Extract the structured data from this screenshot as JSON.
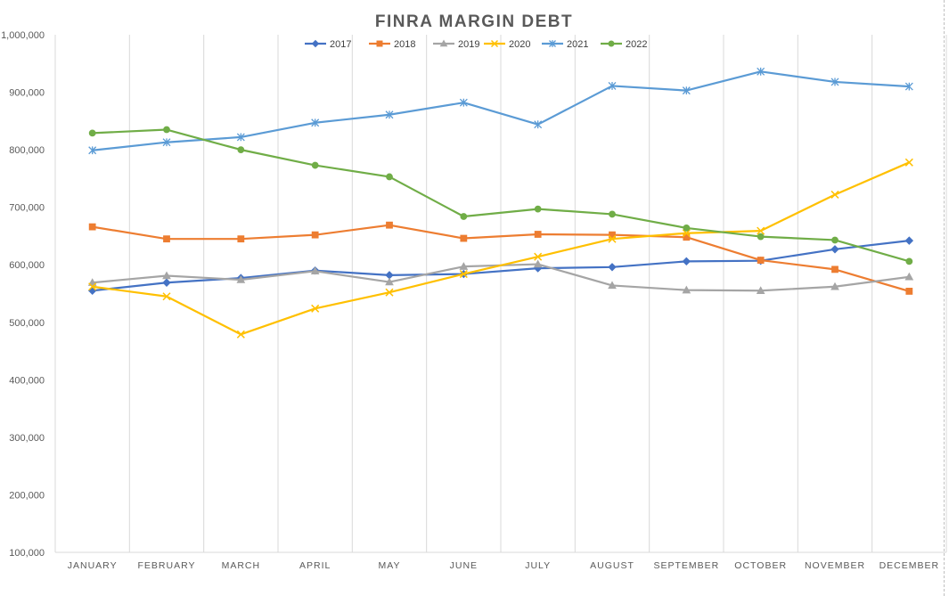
{
  "chart_data": {
    "type": "line",
    "title": "FINRA MARGIN DEBT",
    "xlabel": "",
    "ylabel": "",
    "ylim": [
      100000,
      1000000
    ],
    "y_ticks": [
      100000,
      200000,
      300000,
      400000,
      500000,
      600000,
      700000,
      800000,
      900000,
      1000000
    ],
    "y_tick_labels": [
      "100,000",
      "200,000",
      "300,000",
      "400,000",
      "500,000",
      "600,000",
      "700,000",
      "800,000",
      "900,000",
      "1,000,000"
    ],
    "categories": [
      "JANUARY",
      "FEBRUARY",
      "MARCH",
      "APRIL",
      "MAY",
      "JUNE",
      "JULY",
      "AUGUST",
      "SEPTEMBER",
      "OCTOBER",
      "NOVEMBER",
      "DECEMBER"
    ],
    "grid": "vertical",
    "legend_position": "top",
    "series": [
      {
        "name": "2017",
        "color": "#4472c4",
        "marker": "diamond",
        "values": [
          555000,
          569000,
          577000,
          590000,
          582000,
          584000,
          594000,
          596000,
          606000,
          607000,
          627000,
          642000
        ]
      },
      {
        "name": "2018",
        "color": "#ed7d31",
        "marker": "square",
        "values": [
          666000,
          645000,
          645000,
          652000,
          669000,
          646000,
          653000,
          652000,
          648000,
          608000,
          592000,
          554000
        ]
      },
      {
        "name": "2019",
        "color": "#a5a5a5",
        "marker": "triangle",
        "values": [
          569000,
          581000,
          574000,
          589000,
          570000,
          597000,
          601000,
          564000,
          556000,
          555000,
          562000,
          579000
        ]
      },
      {
        "name": "2020",
        "color": "#ffc000",
        "marker": "x",
        "values": [
          562000,
          545000,
          479000,
          524000,
          552000,
          584000,
          614000,
          645000,
          655000,
          659000,
          722000,
          778000
        ]
      },
      {
        "name": "2021",
        "color": "#5b9bd5",
        "marker": "star",
        "values": [
          799000,
          813000,
          822000,
          847000,
          861000,
          882000,
          844000,
          911000,
          903000,
          936000,
          918000,
          910000
        ]
      },
      {
        "name": "2022",
        "color": "#70ad47",
        "marker": "circle",
        "values": [
          829000,
          835000,
          800000,
          773000,
          753000,
          684000,
          697000,
          688000,
          664000,
          649000,
          643000,
          606000
        ]
      }
    ]
  }
}
